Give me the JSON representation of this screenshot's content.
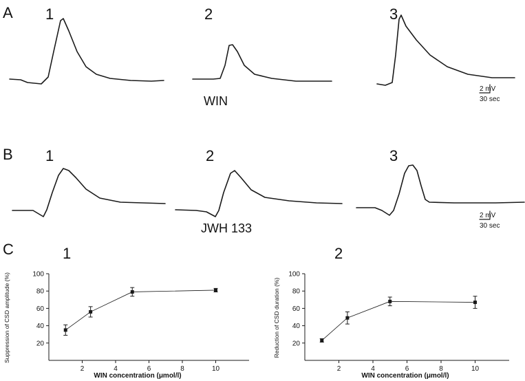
{
  "panels": {
    "A": {
      "letter": "A",
      "trace_numbers": [
        "1",
        "2",
        "3"
      ],
      "drug": "WIN",
      "scale": {
        "voltage": "2 mV",
        "time": "30 sec"
      }
    },
    "B": {
      "letter": "B",
      "trace_numbers": [
        "1",
        "2",
        "3"
      ],
      "drug": "JWH 133",
      "scale": {
        "voltage": "2 mV",
        "time": "30 sec"
      }
    },
    "C": {
      "letter": "C",
      "trace_numbers": [
        "1",
        "2"
      ]
    }
  },
  "chart_data": [
    {
      "type": "line",
      "title": "",
      "xlabel": "WIN concentration (μmol/l)",
      "ylabel": "Suppression of CSD amplitude (%)",
      "x": [
        1,
        2.5,
        5,
        10
      ],
      "series": [
        {
          "values": [
            35,
            56,
            79,
            81
          ],
          "errors": [
            6,
            6,
            5,
            2
          ]
        }
      ],
      "xlim": [
        0,
        12
      ],
      "ylim": [
        0,
        100
      ],
      "xticks": [
        "2",
        "4",
        "6",
        "8",
        "10"
      ],
      "yticks": [
        "20",
        "40",
        "60",
        "80",
        "100"
      ],
      "grid": false,
      "legend": "none"
    },
    {
      "type": "line",
      "title": "",
      "xlabel": "WIN concentration (μmol/l)",
      "ylabel": "Reduction of CSD duration (%)",
      "x": [
        1,
        2.5,
        5,
        10
      ],
      "series": [
        {
          "values": [
            23,
            49,
            68,
            67
          ],
          "errors": [
            2,
            7,
            5,
            7
          ]
        }
      ],
      "xlim": [
        0,
        12
      ],
      "ylim": [
        0,
        100
      ],
      "xticks": [
        "2",
        "4",
        "6",
        "8",
        "10"
      ],
      "yticks": [
        "20",
        "40",
        "60",
        "80",
        "100"
      ],
      "grid": false,
      "legend": "none"
    }
  ],
  "colors": {
    "ink": "#1a1a1a",
    "background": "#ffffff"
  }
}
